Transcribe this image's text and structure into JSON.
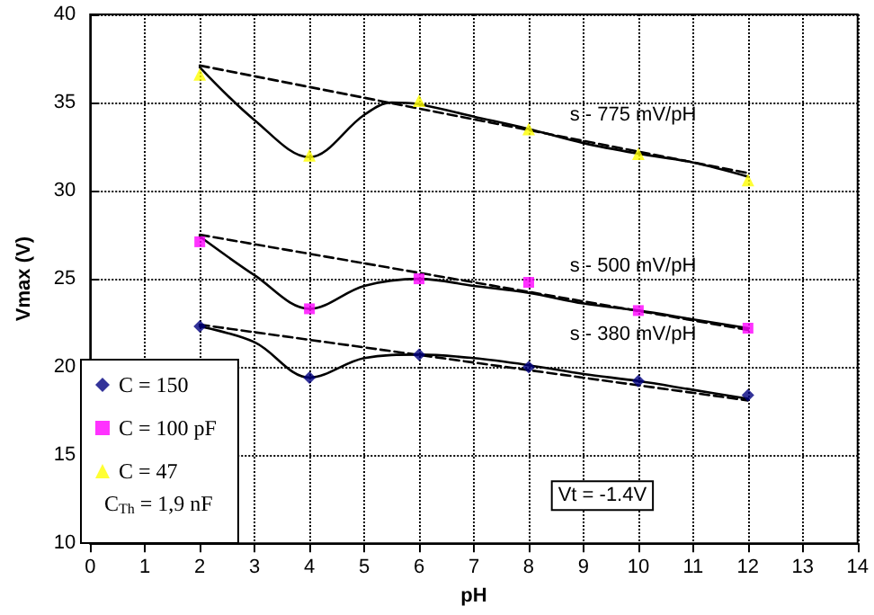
{
  "chart_data": {
    "type": "scatter",
    "xlabel": "pH",
    "ylabel": "Vmax (V)",
    "xlim": [
      0,
      14
    ],
    "xticks": [
      0,
      1,
      2,
      3,
      4,
      5,
      6,
      7,
      8,
      9,
      10,
      11,
      12,
      13,
      14
    ],
    "ylim": [
      10,
      40
    ],
    "yticks": [
      10,
      15,
      20,
      25,
      30,
      35,
      40
    ],
    "grid": true,
    "legend": "bottom left",
    "series": [
      {
        "name": "C = 150",
        "marker": "diamond",
        "color": "#000080",
        "x": [
          2,
          4,
          6,
          8,
          10,
          12
        ],
        "values": [
          22.3,
          19.4,
          20.7,
          20.0,
          19.2,
          18.4
        ]
      },
      {
        "name": "C = 100 pF",
        "marker": "square",
        "color": "#ff00ff",
        "x": [
          2,
          4,
          6,
          8,
          10,
          12
        ],
        "values": [
          27.1,
          23.3,
          25.0,
          24.8,
          23.2,
          22.2
        ]
      },
      {
        "name": "C = 47",
        "marker": "triangle",
        "color": "#ffff00",
        "x": [
          2,
          4,
          6,
          8,
          10,
          12
        ],
        "values": [
          36.6,
          32.0,
          35.1,
          33.5,
          32.1,
          30.6
        ]
      },
      {
        "type": "line",
        "marker": "none",
        "line_style": "solid",
        "color": "#000000",
        "x": [
          2,
          3,
          4,
          5,
          5.5,
          6,
          7,
          8,
          9,
          10,
          11,
          12
        ],
        "values": [
          37.0,
          34.0,
          31.9,
          34.3,
          35.0,
          34.9,
          34.2,
          33.5,
          32.7,
          32.1,
          31.6,
          30.8
        ]
      },
      {
        "type": "line",
        "marker": "none",
        "line_style": "solid",
        "color": "#000000",
        "x": [
          2,
          3,
          4,
          5,
          6,
          7,
          8,
          9,
          10,
          11,
          12
        ],
        "values": [
          27.4,
          25.2,
          23.3,
          24.6,
          25.0,
          24.6,
          24.2,
          23.6,
          23.2,
          22.7,
          22.2
        ]
      },
      {
        "type": "line",
        "marker": "none",
        "line_style": "solid",
        "color": "#000000",
        "x": [
          2,
          3,
          4,
          5,
          6,
          7,
          8,
          9,
          10,
          11,
          12
        ],
        "values": [
          22.3,
          21.4,
          19.4,
          20.5,
          20.7,
          20.5,
          20.1,
          19.6,
          19.2,
          18.7,
          18.2
        ]
      },
      {
        "type": "line",
        "marker": "none",
        "line_style": "dashed",
        "color": "#000000",
        "x": [
          2,
          12
        ],
        "values": [
          37.1,
          31.0
        ]
      },
      {
        "type": "line",
        "marker": "none",
        "line_style": "dashed",
        "color": "#000000",
        "x": [
          2,
          12
        ],
        "values": [
          27.5,
          22.1
        ]
      },
      {
        "type": "line",
        "marker": "none",
        "line_style": "dashed",
        "color": "#000000",
        "x": [
          2,
          12
        ],
        "values": [
          22.4,
          18.1
        ]
      }
    ],
    "annotations": [
      "C$_{Th}$ = 1,9 nF",
      "Vt = -1.4V",
      "s - 775 mV/pH",
      "s - 500 mV/pH",
      "s - 380 mV/pH"
    ]
  }
}
